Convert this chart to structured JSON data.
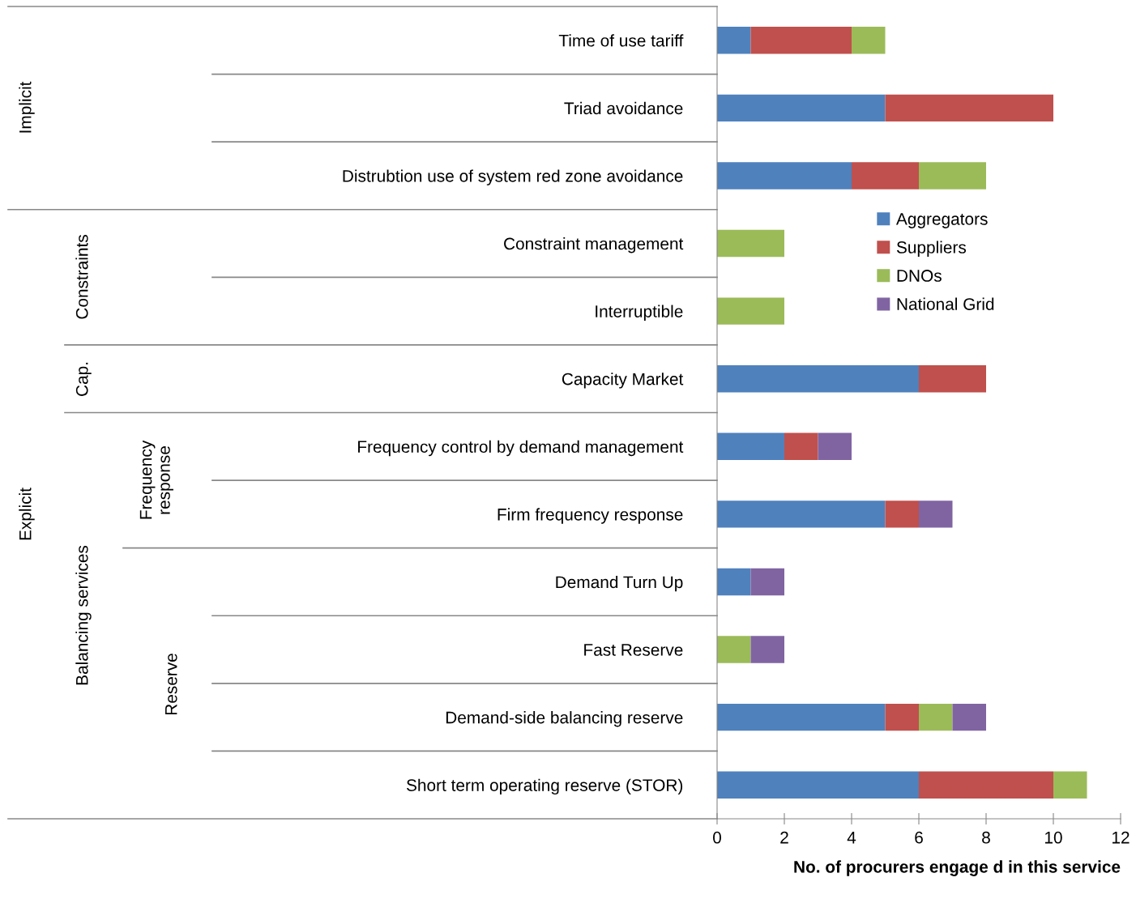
{
  "chart_data": {
    "type": "bar",
    "orientation": "horizontal",
    "stacked": true,
    "categories": [
      "Time of use tariff",
      "Triad avoidance",
      "Distrubtion use of system red zone avoidance",
      "Constraint management",
      "Interruptible",
      "Capacity Market",
      "Frequency control by demand management",
      "Firm frequency response",
      "Demand Turn Up",
      "Fast Reserve",
      "Demand-side balancing reserve",
      "Short term operating reserve (STOR)"
    ],
    "series": [
      {
        "name": "Aggregators",
        "color": "#4f81bd",
        "values": [
          1,
          5,
          4,
          0,
          0,
          6,
          2,
          5,
          1,
          0,
          5,
          6
        ]
      },
      {
        "name": "Suppliers",
        "color": "#c0504d",
        "values": [
          3,
          5,
          2,
          0,
          0,
          2,
          1,
          1,
          0,
          0,
          1,
          4
        ]
      },
      {
        "name": "DNOs",
        "color": "#9bbb59",
        "values": [
          1,
          0,
          2,
          2,
          2,
          0,
          0,
          0,
          0,
          1,
          1,
          1
        ]
      },
      {
        "name": "National Grid",
        "color": "#8064a2",
        "values": [
          0,
          0,
          0,
          0,
          0,
          0,
          1,
          1,
          1,
          1,
          1,
          0
        ]
      }
    ],
    "xlabel": "No. of procurers engage d in this service",
    "xlim": [
      0,
      12
    ],
    "xticks": [
      0,
      2,
      4,
      6,
      8,
      10,
      12
    ],
    "grid": false,
    "legend": "right",
    "annotations": [
      "Implicit",
      "Constraints",
      "Cap.",
      "Explicit",
      "Balancing services",
      "Frequency\nresponse",
      "Reserve"
    ]
  }
}
